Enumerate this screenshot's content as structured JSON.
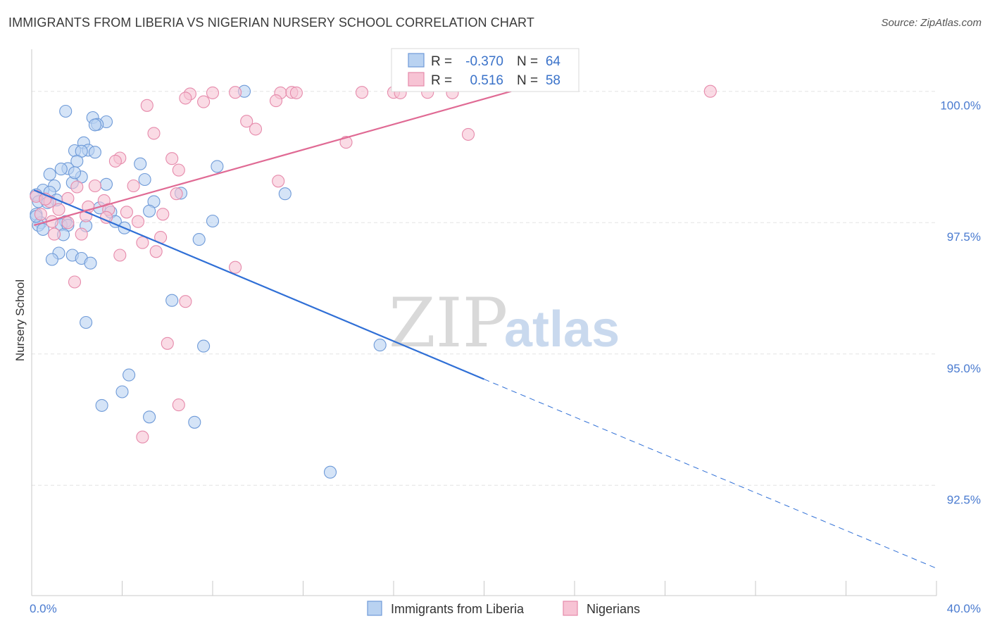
{
  "title": "IMMIGRANTS FROM LIBERIA VS NIGERIAN NURSERY SCHOOL CORRELATION CHART",
  "source": "Source: ZipAtlas.com",
  "watermark": {
    "zip": "ZIP",
    "atlas": "atlas"
  },
  "colors": {
    "blue": "#4a87d6",
    "blue_fill": "#b9d2f1",
    "pink": "#e06a94",
    "pink_fill": "#f7c3d4",
    "tick_text": "#4a7bd0",
    "grid": "#e3e3e3"
  },
  "legend": {
    "row1": {
      "r_label": "R =",
      "r_value": "-0.370",
      "n_label": "N =",
      "n_value": "64"
    },
    "row2": {
      "r_label": "R =",
      "r_value": "0.516",
      "n_label": "N =",
      "n_value": "58"
    }
  },
  "bottom_legend": {
    "series1": "Immigrants from Liberia",
    "series2": "Nigerians"
  },
  "chart_data": {
    "type": "scatter",
    "title": "IMMIGRANTS FROM LIBERIA VS NIGERIAN NURSERY SCHOOL CORRELATION CHART",
    "xlabel": "",
    "ylabel": "Nursery School",
    "xlim": [
      0,
      40
    ],
    "ylim": [
      90.4,
      100.8
    ],
    "x_tick_labels": [
      "0.0%",
      "40.0%"
    ],
    "y_ticks": [
      92.5,
      95.0,
      97.5,
      100.0
    ],
    "y_tick_labels": [
      "92.5%",
      "95.0%",
      "97.5%",
      "100.0%"
    ],
    "series": [
      {
        "name": "Immigrants from Liberia",
        "R": -0.37,
        "N": 64,
        "trend": {
          "x0": 0.1,
          "y0": 98.12,
          "x1": 20.0,
          "y1": 94.52,
          "dash_to_x": 40.0,
          "dash_to_y": 90.92
        },
        "points": [
          [
            1.5,
            99.62
          ],
          [
            2.7,
            99.5
          ],
          [
            3.3,
            99.42
          ],
          [
            2.9,
            99.37
          ],
          [
            2.8,
            99.36
          ],
          [
            2.3,
            99.02
          ],
          [
            1.9,
            98.87
          ],
          [
            2.5,
            98.88
          ],
          [
            2.2,
            98.86
          ],
          [
            2.8,
            98.84
          ],
          [
            2.0,
            98.67
          ],
          [
            4.8,
            98.62
          ],
          [
            8.2,
            98.57
          ],
          [
            1.6,
            98.53
          ],
          [
            1.3,
            98.52
          ],
          [
            0.8,
            98.42
          ],
          [
            2.2,
            98.37
          ],
          [
            5.0,
            98.32
          ],
          [
            1.8,
            98.26
          ],
          [
            3.3,
            98.23
          ],
          [
            1.0,
            98.2
          ],
          [
            0.5,
            98.12
          ],
          [
            0.8,
            98.08
          ],
          [
            6.6,
            98.06
          ],
          [
            11.2,
            98.05
          ],
          [
            0.2,
            98.03
          ],
          [
            1.1,
            97.93
          ],
          [
            0.3,
            97.9
          ],
          [
            0.7,
            97.88
          ],
          [
            5.4,
            97.9
          ],
          [
            3.0,
            97.78
          ],
          [
            3.5,
            97.7
          ],
          [
            5.2,
            97.72
          ],
          [
            0.2,
            97.66
          ],
          [
            1.5,
            97.52
          ],
          [
            3.7,
            97.52
          ],
          [
            0.4,
            97.5
          ],
          [
            0.3,
            97.45
          ],
          [
            1.3,
            97.46
          ],
          [
            1.6,
            97.45
          ],
          [
            2.4,
            97.44
          ],
          [
            4.1,
            97.4
          ],
          [
            8.0,
            97.53
          ],
          [
            0.5,
            97.37
          ],
          [
            1.4,
            97.27
          ],
          [
            7.4,
            97.18
          ],
          [
            1.2,
            96.92
          ],
          [
            1.8,
            96.88
          ],
          [
            2.2,
            96.82
          ],
          [
            0.9,
            96.8
          ],
          [
            2.6,
            96.73
          ],
          [
            6.2,
            96.02
          ],
          [
            2.4,
            95.6
          ],
          [
            7.6,
            95.15
          ],
          [
            15.4,
            95.17
          ],
          [
            4.3,
            94.6
          ],
          [
            4.0,
            94.28
          ],
          [
            3.1,
            94.02
          ],
          [
            5.2,
            93.8
          ],
          [
            7.2,
            93.7
          ],
          [
            13.2,
            92.75
          ],
          [
            9.4,
            100.0
          ],
          [
            0.2,
            97.62
          ],
          [
            1.9,
            98.45
          ]
        ]
      },
      {
        "name": "Nigerians",
        "R": 0.516,
        "N": 58,
        "trend": {
          "x0": 0.1,
          "y0": 97.45,
          "x1": 21.2,
          "y1": 100.0
        },
        "points": [
          [
            7.0,
            99.95
          ],
          [
            8.0,
            99.97
          ],
          [
            9.0,
            99.98
          ],
          [
            11.0,
            99.97
          ],
          [
            11.5,
            99.98
          ],
          [
            11.7,
            99.97
          ],
          [
            14.6,
            99.98
          ],
          [
            16.0,
            99.98
          ],
          [
            16.3,
            99.97
          ],
          [
            17.5,
            99.98
          ],
          [
            18.6,
            99.97
          ],
          [
            30.0,
            100.0
          ],
          [
            6.8,
            99.87
          ],
          [
            7.6,
            99.8
          ],
          [
            10.8,
            99.82
          ],
          [
            5.1,
            99.73
          ],
          [
            9.5,
            99.43
          ],
          [
            9.9,
            99.28
          ],
          [
            5.4,
            99.2
          ],
          [
            19.3,
            99.18
          ],
          [
            13.9,
            99.03
          ],
          [
            3.9,
            98.73
          ],
          [
            3.7,
            98.67
          ],
          [
            6.2,
            98.72
          ],
          [
            6.5,
            98.5
          ],
          [
            10.9,
            98.29
          ],
          [
            4.5,
            98.2
          ],
          [
            6.4,
            98.05
          ],
          [
            2.0,
            98.18
          ],
          [
            2.8,
            98.2
          ],
          [
            1.6,
            97.96
          ],
          [
            3.2,
            97.92
          ],
          [
            0.2,
            98.0
          ],
          [
            0.8,
            97.9
          ],
          [
            1.2,
            97.75
          ],
          [
            3.4,
            97.75
          ],
          [
            4.2,
            97.7
          ],
          [
            5.8,
            97.66
          ],
          [
            2.4,
            97.63
          ],
          [
            3.3,
            97.6
          ],
          [
            0.9,
            97.52
          ],
          [
            4.7,
            97.52
          ],
          [
            1.6,
            97.5
          ],
          [
            2.2,
            97.28
          ],
          [
            5.7,
            97.22
          ],
          [
            1.0,
            97.28
          ],
          [
            4.9,
            97.12
          ],
          [
            5.5,
            96.95
          ],
          [
            3.9,
            96.88
          ],
          [
            9.0,
            96.65
          ],
          [
            1.9,
            96.37
          ],
          [
            6.8,
            96.0
          ],
          [
            6.0,
            95.2
          ],
          [
            6.5,
            94.03
          ],
          [
            4.9,
            93.42
          ],
          [
            0.4,
            97.66
          ],
          [
            0.6,
            97.95
          ],
          [
            2.5,
            97.8
          ]
        ]
      }
    ]
  }
}
